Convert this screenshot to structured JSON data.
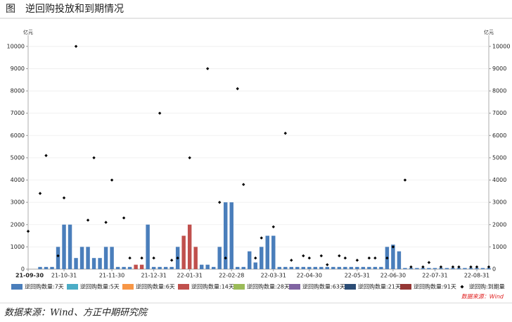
{
  "title": "图　逆回购投放和到期情况",
  "footer": "数据来源：Wind、方正中期研究院",
  "chart_data": {
    "type": "bar",
    "source_note": "数据来源：Wind",
    "y_unit": "亿元",
    "y2_unit": "亿元",
    "ylim": [
      0,
      10500
    ],
    "yticks": [
      0,
      1000,
      2000,
      3000,
      4000,
      5000,
      6000,
      7000,
      8000,
      9000,
      10000
    ],
    "y2lim": [
      0,
      10500
    ],
    "y2ticks": [
      0,
      1000,
      2000,
      3000,
      4000,
      5000,
      6000,
      7000,
      8000,
      9000,
      10000
    ],
    "categories": [
      "21-09-30",
      null,
      null,
      null,
      null,
      null,
      "21-10-31",
      null,
      null,
      null,
      null,
      null,
      null,
      null,
      "21-11-30",
      null,
      null,
      null,
      null,
      null,
      null,
      "21-12-31",
      null,
      null,
      null,
      null,
      null,
      "22-01-31",
      null,
      null,
      null,
      null,
      null,
      null,
      "22-02-28",
      null,
      null,
      null,
      null,
      null,
      null,
      "22-03-31",
      null,
      null,
      null,
      null,
      null,
      "22-04-30",
      null,
      null,
      null,
      null,
      null,
      null,
      null,
      "22-05-31",
      null,
      null,
      null,
      null,
      null,
      "22-06-30",
      null,
      null,
      null,
      null,
      null,
      null,
      "22-07-31",
      null,
      null,
      null,
      null,
      null,
      null,
      "22-08-31",
      null,
      null
    ],
    "series": [
      {
        "name": "逆回购数量:7天",
        "type": "bar",
        "color": "#4a7ebb",
        "values": [
          0,
          0,
          100,
          100,
          100,
          1000,
          2000,
          2000,
          500,
          1000,
          1000,
          500,
          500,
          1000,
          1000,
          100,
          100,
          100,
          0,
          0,
          2000,
          100,
          100,
          100,
          100,
          1000,
          0,
          0,
          0,
          200,
          200,
          100,
          1000,
          3000,
          3000,
          100,
          100,
          800,
          300,
          1000,
          1500,
          1500,
          100,
          100,
          100,
          100,
          100,
          100,
          100,
          100,
          100,
          100,
          100,
          100,
          100,
          100,
          100,
          100,
          100,
          100,
          1000,
          1100,
          800,
          50,
          50,
          50,
          50,
          50,
          50,
          50,
          50,
          50,
          50,
          50,
          50,
          50,
          50,
          50
        ]
      },
      {
        "name": "逆回购数量:5天",
        "type": "bar",
        "color": "#4bacc6",
        "values": [
          0,
          0,
          0,
          0,
          0,
          0,
          0,
          0,
          0,
          0,
          0,
          0,
          0,
          0,
          0,
          0,
          0,
          0,
          0,
          0,
          0,
          0,
          0,
          0,
          0,
          0,
          0,
          0,
          0,
          0,
          0,
          0,
          0,
          0,
          0,
          0,
          0,
          0,
          0,
          0,
          0,
          0,
          0,
          0,
          0,
          0,
          0,
          0,
          0,
          0,
          0,
          0,
          0,
          0,
          0,
          0,
          0,
          0,
          0,
          0,
          0,
          0,
          0,
          0,
          0,
          0,
          0,
          0,
          0,
          0,
          0,
          0,
          0,
          0,
          0,
          0,
          0,
          0
        ]
      },
      {
        "name": "逆回购数量:6天",
        "type": "bar",
        "color": "#f79646",
        "values": [
          0,
          0,
          0,
          0,
          0,
          0,
          0,
          0,
          0,
          0,
          0,
          0,
          0,
          0,
          0,
          0,
          0,
          0,
          0,
          0,
          0,
          0,
          0,
          0,
          0,
          0,
          0,
          0,
          0,
          0,
          0,
          0,
          0,
          0,
          0,
          0,
          0,
          0,
          0,
          0,
          0,
          0,
          0,
          0,
          0,
          0,
          0,
          0,
          0,
          0,
          0,
          0,
          0,
          0,
          0,
          0,
          0,
          0,
          0,
          0,
          0,
          0,
          0,
          0,
          0,
          0,
          0,
          0,
          0,
          0,
          0,
          0,
          0,
          0,
          0,
          0,
          0,
          0
        ]
      },
      {
        "name": "逆回购数量:14天",
        "type": "bar",
        "color": "#c0504d",
        "values": [
          0,
          0,
          0,
          0,
          0,
          0,
          0,
          0,
          0,
          0,
          0,
          0,
          0,
          0,
          0,
          0,
          0,
          0,
          200,
          200,
          0,
          0,
          0,
          0,
          0,
          0,
          1500,
          2000,
          1000,
          0,
          0,
          0,
          0,
          0,
          0,
          0,
          0,
          0,
          0,
          0,
          0,
          0,
          0,
          0,
          0,
          0,
          0,
          0,
          0,
          0,
          0,
          0,
          0,
          0,
          0,
          0,
          0,
          0,
          0,
          0,
          0,
          0,
          0,
          0,
          0,
          0,
          0,
          0,
          0,
          0,
          0,
          0,
          0,
          0,
          0,
          0,
          0,
          0
        ]
      },
      {
        "name": "逆回购数量:28天",
        "type": "bar",
        "color": "#9bbb59",
        "values": [
          0,
          0,
          0,
          0,
          0,
          0,
          0,
          0,
          0,
          0,
          0,
          0,
          0,
          0,
          0,
          0,
          0,
          0,
          0,
          0,
          0,
          0,
          0,
          0,
          0,
          0,
          0,
          0,
          0,
          0,
          0,
          0,
          0,
          0,
          0,
          0,
          0,
          0,
          0,
          0,
          0,
          0,
          0,
          0,
          0,
          0,
          0,
          0,
          0,
          0,
          0,
          0,
          0,
          0,
          0,
          0,
          0,
          0,
          0,
          0,
          0,
          0,
          0,
          0,
          0,
          0,
          0,
          0,
          0,
          0,
          0,
          0,
          0,
          0,
          0,
          0,
          0,
          0
        ]
      },
      {
        "name": "逆回购数量:63天",
        "type": "bar",
        "color": "#8064a2",
        "values": [
          0,
          0,
          0,
          0,
          0,
          0,
          0,
          0,
          0,
          0,
          0,
          0,
          0,
          0,
          0,
          0,
          0,
          0,
          0,
          0,
          0,
          0,
          0,
          0,
          0,
          0,
          0,
          0,
          0,
          0,
          0,
          0,
          0,
          0,
          0,
          0,
          0,
          0,
          0,
          0,
          0,
          0,
          0,
          0,
          0,
          0,
          0,
          0,
          0,
          0,
          0,
          0,
          0,
          0,
          0,
          0,
          0,
          0,
          0,
          0,
          0,
          0,
          0,
          0,
          0,
          0,
          0,
          0,
          0,
          0,
          0,
          0,
          0,
          0,
          0,
          0,
          0,
          0
        ]
      },
      {
        "name": "逆回购数量:21天",
        "type": "bar",
        "color": "#2c4d75",
        "values": [
          0,
          0,
          0,
          0,
          0,
          0,
          0,
          0,
          0,
          0,
          0,
          0,
          0,
          0,
          0,
          0,
          0,
          0,
          0,
          0,
          0,
          0,
          0,
          0,
          0,
          0,
          0,
          0,
          0,
          0,
          0,
          0,
          0,
          0,
          0,
          0,
          0,
          0,
          0,
          0,
          0,
          0,
          0,
          0,
          0,
          0,
          0,
          0,
          0,
          0,
          0,
          0,
          0,
          0,
          0,
          0,
          0,
          0,
          0,
          0,
          0,
          0,
          0,
          0,
          0,
          0,
          0,
          0,
          0,
          0,
          0,
          0,
          0,
          0,
          0,
          0,
          0,
          0
        ]
      },
      {
        "name": "逆回购数量:91天",
        "type": "bar",
        "color": "#953735",
        "values": [
          0,
          0,
          0,
          0,
          0,
          0,
          0,
          0,
          0,
          0,
          0,
          0,
          0,
          0,
          0,
          0,
          0,
          0,
          0,
          0,
          0,
          0,
          0,
          0,
          0,
          0,
          0,
          0,
          0,
          0,
          0,
          0,
          0,
          0,
          0,
          0,
          0,
          0,
          0,
          0,
          0,
          0,
          0,
          0,
          0,
          0,
          0,
          0,
          0,
          0,
          0,
          0,
          0,
          0,
          0,
          0,
          0,
          0,
          0,
          0,
          0,
          0,
          0,
          0,
          0,
          0,
          0,
          0,
          0,
          0,
          0,
          0,
          0,
          0,
          0,
          0,
          0,
          0
        ]
      },
      {
        "name": "逆回购:到期量",
        "type": "scatter",
        "axis": "y2",
        "color": "#000000",
        "values": [
          1700,
          null,
          3400,
          5100,
          null,
          600,
          3200,
          null,
          10000,
          null,
          2200,
          5000,
          null,
          2100,
          4000,
          null,
          2300,
          500,
          null,
          500,
          null,
          500,
          7000,
          null,
          400,
          500,
          null,
          5000,
          null,
          null,
          9000,
          null,
          3000,
          500,
          null,
          8100,
          3800,
          null,
          500,
          1400,
          null,
          1900,
          null,
          6100,
          400,
          null,
          600,
          500,
          null,
          600,
          200,
          null,
          600,
          500,
          null,
          400,
          null,
          500,
          500,
          null,
          500,
          1000,
          null,
          4000,
          100,
          null,
          100,
          300,
          null,
          100,
          null,
          100,
          100,
          null,
          100,
          100,
          null,
          100
        ]
      }
    ]
  }
}
